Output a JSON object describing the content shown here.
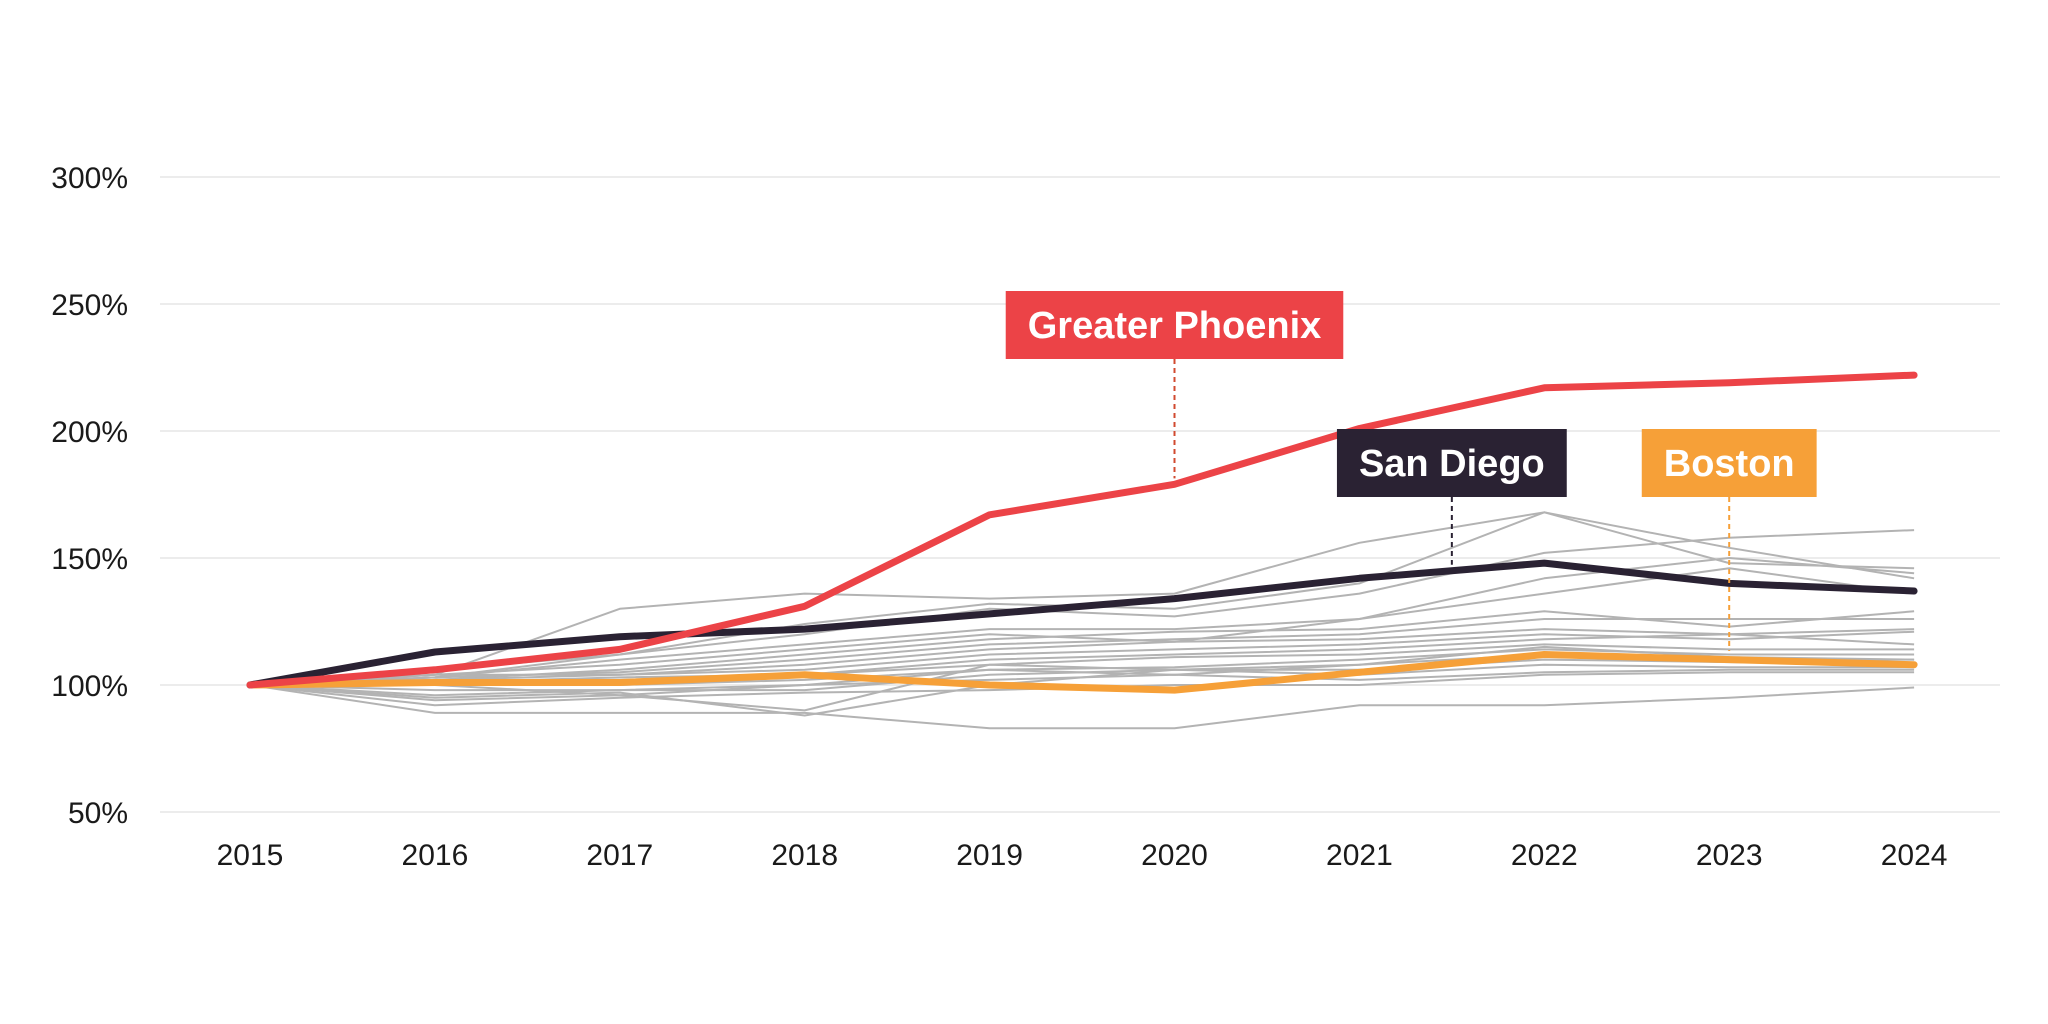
{
  "chart_data": {
    "type": "line",
    "title": "",
    "xlabel": "",
    "ylabel": "",
    "x": [
      "2015",
      "2016",
      "2017",
      "2018",
      "2019",
      "2020",
      "2021",
      "2022",
      "2023",
      "2024"
    ],
    "yticks": [
      "50%",
      "100%",
      "150%",
      "200%",
      "250%",
      "300%"
    ],
    "ylim": [
      50,
      300
    ],
    "grid": true,
    "legend": "none",
    "highlighted": [
      {
        "name": "Greater Phoenix",
        "color": "#ec4347",
        "values": [
          100,
          106,
          114,
          131,
          167,
          179,
          201,
          217,
          219,
          222
        ]
      },
      {
        "name": "San Diego",
        "color": "#2a2233",
        "values": [
          100,
          113,
          119,
          122,
          128,
          134,
          142,
          148,
          140,
          137
        ]
      },
      {
        "name": "Boston",
        "color": "#f6a038",
        "values": [
          100,
          101,
          101,
          104,
          100,
          98,
          105,
          112,
          110,
          108
        ]
      }
    ],
    "background_series": [
      {
        "color": "#b3b3b3",
        "values": [
          100,
          104,
          130,
          136,
          134,
          136,
          156,
          168,
          154,
          142
        ]
      },
      {
        "color": "#b3b3b3",
        "values": [
          100,
          103,
          112,
          124,
          132,
          130,
          140,
          168,
          148,
          146
        ]
      },
      {
        "color": "#b3b3b3",
        "values": [
          100,
          106,
          112,
          120,
          130,
          127,
          136,
          152,
          158,
          161
        ]
      },
      {
        "color": "#b3b3b3",
        "values": [
          100,
          103,
          110,
          116,
          122,
          122,
          126,
          142,
          150,
          144
        ]
      },
      {
        "color": "#b3b3b3",
        "values": [
          100,
          104,
          108,
          114,
          120,
          117,
          126,
          136,
          146,
          136
        ]
      },
      {
        "color": "#b3b3b3",
        "values": [
          100,
          102,
          106,
          112,
          118,
          121,
          122,
          129,
          123,
          129
        ]
      },
      {
        "color": "#b3b3b3",
        "values": [
          100,
          103,
          105,
          110,
          116,
          118,
          120,
          126,
          126,
          126
        ]
      },
      {
        "color": "#b3b3b3",
        "values": [
          100,
          104,
          104,
          108,
          114,
          117,
          118,
          122,
          120,
          122
        ]
      },
      {
        "color": "#b3b3b3",
        "values": [
          100,
          102,
          104,
          106,
          112,
          114,
          116,
          120,
          118,
          121
        ]
      },
      {
        "color": "#b3b3b3",
        "values": [
          100,
          101,
          103,
          104,
          110,
          112,
          114,
          118,
          120,
          116
        ]
      },
      {
        "color": "#b3b3b3",
        "values": [
          100,
          102,
          102,
          104,
          108,
          111,
          112,
          116,
          114,
          114
        ]
      },
      {
        "color": "#b3b3b3",
        "values": [
          100,
          100,
          100,
          102,
          106,
          107,
          110,
          114,
          112,
          112
        ]
      },
      {
        "color": "#b3b3b3",
        "values": [
          100,
          98,
          98,
          100,
          106,
          104,
          108,
          112,
          110,
          110
        ]
      },
      {
        "color": "#b3b3b3",
        "values": [
          100,
          96,
          98,
          98,
          104,
          106,
          106,
          110,
          109,
          108
        ]
      },
      {
        "color": "#b3b3b3",
        "values": [
          100,
          100,
          96,
          90,
          108,
          106,
          104,
          108,
          107,
          107
        ]
      },
      {
        "color": "#b3b3b3",
        "values": [
          100,
          94,
          96,
          100,
          102,
          104,
          102,
          105,
          106,
          106
        ]
      },
      {
        "color": "#b3b3b3",
        "values": [
          100,
          92,
          95,
          97,
          98,
          100,
          100,
          104,
          105,
          105
        ]
      },
      {
        "color": "#b3b3b3",
        "values": [
          100,
          89,
          89,
          89,
          83,
          83,
          92,
          92,
          95,
          99
        ]
      },
      {
        "color": "#b3b3b3",
        "values": [
          100,
          95,
          97,
          88,
          100,
          106,
          108,
          115,
          111,
          110
        ]
      }
    ],
    "callouts": [
      {
        "series": "Greater Phoenix",
        "label": "Greater Phoenix",
        "x": 2020.0,
        "y": 179,
        "text_color": "#ffffff",
        "box_color": "#ec4347",
        "leader_color": "#d14a2f"
      },
      {
        "series": "San Diego",
        "label": "San Diego",
        "x": 2021.5,
        "y": 145,
        "text_color": "#ffffff",
        "box_color": "#2a2233",
        "leader_color": "#2a2233"
      },
      {
        "series": "Boston",
        "label": "Boston",
        "x": 2023.0,
        "y": 111,
        "text_color": "#ffffff",
        "box_color": "#f6a038",
        "leader_color": "#f6a038"
      }
    ],
    "colors": {
      "grid": "#e6e6e6",
      "text": "#1a1a1a",
      "background": "#ffffff"
    }
  }
}
